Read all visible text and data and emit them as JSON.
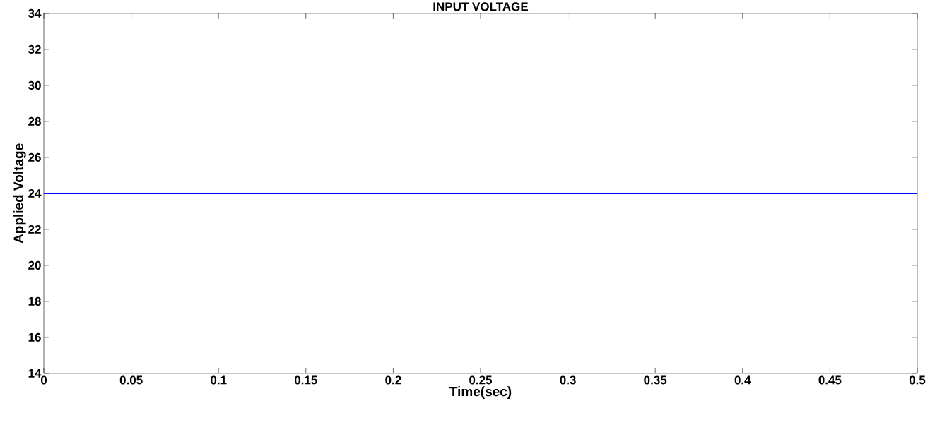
{
  "chart_data": {
    "type": "line",
    "title": "INPUT VOLTAGE",
    "xlabel": "Time(sec)",
    "ylabel": "Applied Voltage",
    "x": [
      0,
      0.5
    ],
    "series": [
      {
        "color": "#0000ff",
        "values": [
          24,
          24
        ]
      }
    ],
    "xlim": [
      0,
      0.5
    ],
    "ylim": [
      14,
      34
    ],
    "xticks": [
      0,
      0.05,
      0.1,
      0.15,
      0.2,
      0.25,
      0.3,
      0.35,
      0.4,
      0.45,
      0.5
    ],
    "yticks": [
      14,
      16,
      18,
      20,
      22,
      24,
      26,
      28,
      30,
      32,
      34
    ]
  }
}
